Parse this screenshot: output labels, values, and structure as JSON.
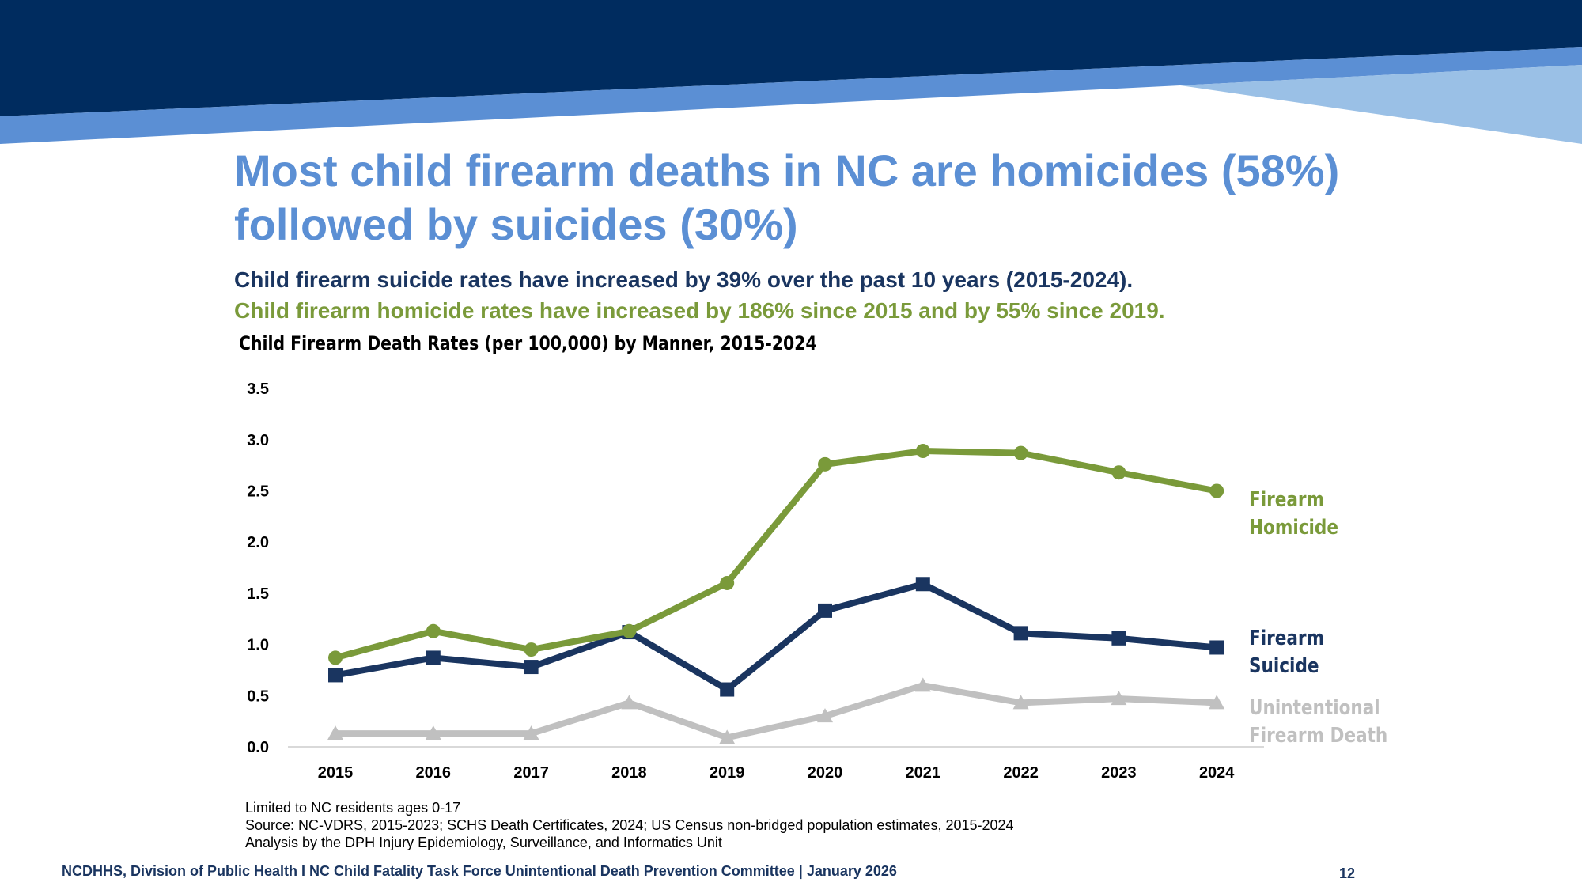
{
  "title": "Most child firearm deaths in NC are homicides (58%) followed by suicides (30%)",
  "subtitle_suicide": "Child firearm suicide rates have increased by 39% over the past 10 years (2015-2024).",
  "subtitle_homicide": "Child firearm homicide rates have increased by 186% since 2015 and by 55% since 2019.",
  "colors": {
    "navy": "#002c5f",
    "mid_blue": "#5b8fd4",
    "light_blue": "#9ac0e6",
    "homicide": "#7a9a3a",
    "suicide": "#1a3560",
    "unintentional": "#c0c0c0"
  },
  "chart_data": {
    "type": "line",
    "title": "Child Firearm Death Rates (per 100,000) by Manner, 2015-2024",
    "xlabel": "",
    "ylabel": "",
    "ylim": [
      0,
      3.5
    ],
    "yticks": [
      "0.0",
      "0.5",
      "1.0",
      "1.5",
      "2.0",
      "2.5",
      "3.0",
      "3.5"
    ],
    "grid": false,
    "categories": [
      "2015",
      "2016",
      "2017",
      "2018",
      "2019",
      "2020",
      "2021",
      "2022",
      "2023",
      "2024"
    ],
    "series": [
      {
        "name": "Firearm Homicide",
        "label_lines": [
          "Firearm",
          "Homicide"
        ],
        "marker": "circle",
        "color": "#7a9a3a",
        "values": [
          0.87,
          1.13,
          0.95,
          1.13,
          1.6,
          2.76,
          2.89,
          2.87,
          2.68,
          2.5
        ]
      },
      {
        "name": "Firearm Suicide",
        "label_lines": [
          "Firearm",
          "Suicide"
        ],
        "marker": "square",
        "color": "#1a3560",
        "values": [
          0.7,
          0.87,
          0.78,
          1.12,
          0.56,
          1.33,
          1.59,
          1.11,
          1.06,
          0.97
        ]
      },
      {
        "name": "Unintentional Firearm Death",
        "label_lines": [
          "Unintentional",
          "Firearm Death"
        ],
        "marker": "triangle",
        "color": "#c0c0c0",
        "values": [
          0.13,
          0.13,
          0.13,
          0.43,
          0.09,
          0.3,
          0.6,
          0.43,
          0.47,
          0.43
        ]
      }
    ]
  },
  "notes": {
    "limit": "Limited to NC residents ages 0-17",
    "source": "Source: NC-VDRS, 2015-2023; SCHS Death Certificates, 2024; US Census non-bridged population estimates, 2015-2024",
    "analysis": "Analysis by the DPH Injury Epidemiology, Surveillance, and Informatics Unit"
  },
  "footer": "NCDHHS, Division of Public Health I NC Child Fatality Task Force Unintentional Death Prevention Committee | January 2026",
  "page_number": "12"
}
